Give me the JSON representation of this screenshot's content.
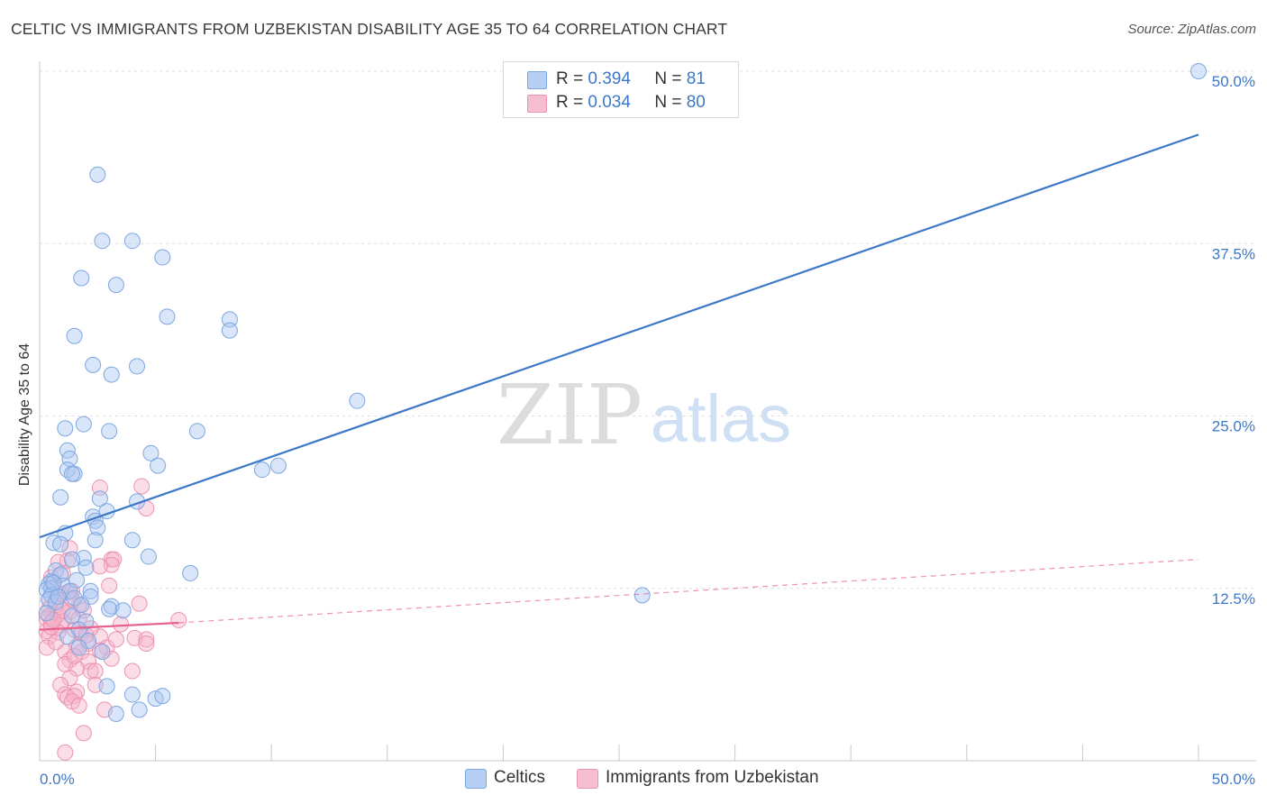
{
  "title": "CELTIC VS IMMIGRANTS FROM UZBEKISTAN DISABILITY AGE 35 TO 64 CORRELATION CHART",
  "source": "Source: ZipAtlas.com",
  "watermark": {
    "zip": "ZIP",
    "atlas": "atlas"
  },
  "colors": {
    "blue": "#3d78c8",
    "pink": "#e8638e",
    "blue_fill": "#b7cff2",
    "pink_fill": "#f6bfd0"
  },
  "legend": {
    "rows": [
      {
        "r_label": "R =",
        "r_value": "0.394",
        "n_label": "N =",
        "n_value": "81"
      },
      {
        "r_label": "R =",
        "r_value": "0.034",
        "n_label": "N =",
        "n_value": "80"
      }
    ]
  },
  "bottom_legend": {
    "series1": "Celtics",
    "series2": "Immigrants from Uzbekistan"
  },
  "chart_data": {
    "type": "scatter",
    "title": "CELTIC VS IMMIGRANTS FROM UZBEKISTAN DISABILITY AGE 35 TO 64 CORRELATION CHART",
    "xlabel": "",
    "ylabel": "Disability Age 35 to 64",
    "xlim": [
      0,
      50
    ],
    "ylim": [
      0,
      50
    ],
    "x_tick_labels": {
      "left": "0.0%",
      "right": "50.0%"
    },
    "y_ticks": [
      {
        "value": 12.5,
        "label": "12.5%"
      },
      {
        "value": 25,
        "label": "25.0%"
      },
      {
        "value": 37.5,
        "label": "37.5%"
      },
      {
        "value": 50,
        "label": "50.0%"
      }
    ],
    "series": [
      {
        "name": "Celtics",
        "r": 0.394,
        "n": 81,
        "trend": {
          "x": [
            0,
            50
          ],
          "y": [
            16.2,
            45.4
          ],
          "style": "solid"
        },
        "points": [
          [
            2.5,
            42.5
          ],
          [
            2.7,
            37.7
          ],
          [
            4.0,
            37.7
          ],
          [
            1.8,
            35.0
          ],
          [
            3.3,
            34.5
          ],
          [
            5.3,
            36.5
          ],
          [
            5.5,
            32.2
          ],
          [
            8.2,
            32.0
          ],
          [
            8.2,
            31.2
          ],
          [
            1.5,
            30.8
          ],
          [
            2.3,
            28.7
          ],
          [
            4.2,
            28.6
          ],
          [
            3.1,
            28.0
          ],
          [
            13.7,
            26.1
          ],
          [
            1.9,
            24.4
          ],
          [
            1.1,
            24.1
          ],
          [
            3.0,
            23.9
          ],
          [
            6.8,
            23.9
          ],
          [
            1.2,
            22.5
          ],
          [
            1.3,
            21.9
          ],
          [
            4.8,
            22.3
          ],
          [
            5.1,
            21.4
          ],
          [
            9.6,
            21.1
          ],
          [
            10.3,
            21.4
          ],
          [
            1.2,
            21.1
          ],
          [
            1.5,
            20.8
          ],
          [
            1.4,
            20.8
          ],
          [
            0.9,
            19.1
          ],
          [
            2.6,
            19.0
          ],
          [
            4.2,
            18.8
          ],
          [
            2.9,
            18.1
          ],
          [
            2.3,
            17.7
          ],
          [
            2.4,
            17.4
          ],
          [
            2.5,
            16.9
          ],
          [
            1.1,
            16.5
          ],
          [
            4.0,
            16.0
          ],
          [
            2.4,
            16.0
          ],
          [
            0.6,
            15.8
          ],
          [
            0.9,
            15.7
          ],
          [
            4.7,
            14.8
          ],
          [
            1.9,
            14.7
          ],
          [
            1.4,
            14.6
          ],
          [
            2.0,
            14.0
          ],
          [
            6.5,
            13.6
          ],
          [
            0.7,
            13.8
          ],
          [
            0.9,
            13.5
          ],
          [
            1.6,
            13.1
          ],
          [
            0.5,
            13.0
          ],
          [
            0.4,
            12.8
          ],
          [
            1.0,
            12.7
          ],
          [
            0.5,
            12.5
          ],
          [
            0.3,
            12.4
          ],
          [
            2.2,
            12.3
          ],
          [
            1.3,
            12.3
          ],
          [
            0.5,
            12.0
          ],
          [
            2.2,
            11.9
          ],
          [
            1.5,
            11.8
          ],
          [
            0.4,
            11.7
          ],
          [
            0.7,
            11.5
          ],
          [
            3.1,
            11.2
          ],
          [
            3.0,
            11.0
          ],
          [
            3.6,
            10.9
          ],
          [
            0.3,
            10.7
          ],
          [
            1.4,
            10.5
          ],
          [
            2.0,
            10.1
          ],
          [
            1.7,
            9.5
          ],
          [
            26.0,
            12.0
          ],
          [
            50.0,
            50.0
          ],
          [
            1.2,
            9.0
          ],
          [
            2.1,
            8.7
          ],
          [
            1.7,
            8.2
          ],
          [
            2.7,
            7.9
          ],
          [
            2.9,
            5.4
          ],
          [
            4.0,
            4.8
          ],
          [
            5.0,
            4.5
          ],
          [
            5.3,
            4.7
          ],
          [
            4.3,
            3.7
          ],
          [
            3.3,
            3.4
          ],
          [
            0.8,
            11.9
          ],
          [
            1.8,
            11.3
          ],
          [
            0.6,
            12.9
          ]
        ]
      },
      {
        "name": "Immigrants from Uzbekistan",
        "r": 0.034,
        "n": 80,
        "trend": {
          "x": [
            0,
            6.0,
            50
          ],
          "y": [
            9.5,
            10.0,
            14.6
          ],
          "style": "solid-then-dashed"
        },
        "points": [
          [
            2.6,
            19.8
          ],
          [
            4.4,
            19.9
          ],
          [
            4.6,
            18.3
          ],
          [
            1.3,
            15.4
          ],
          [
            3.1,
            14.6
          ],
          [
            3.2,
            14.6
          ],
          [
            3.1,
            14.2
          ],
          [
            1.2,
            14.5
          ],
          [
            2.6,
            14.1
          ],
          [
            0.8,
            14.4
          ],
          [
            0.5,
            13.3
          ],
          [
            1.0,
            13.6
          ],
          [
            3.0,
            12.7
          ],
          [
            1.2,
            12.2
          ],
          [
            1.4,
            12.3
          ],
          [
            0.8,
            11.9
          ],
          [
            0.4,
            11.7
          ],
          [
            4.3,
            11.4
          ],
          [
            1.7,
            11.3
          ],
          [
            0.9,
            11.1
          ],
          [
            0.4,
            11.0
          ],
          [
            1.3,
            10.8
          ],
          [
            0.8,
            10.6
          ],
          [
            0.4,
            10.5
          ],
          [
            1.7,
            10.3
          ],
          [
            0.3,
            10.3
          ],
          [
            6.0,
            10.2
          ],
          [
            1.0,
            10.1
          ],
          [
            0.5,
            10.0
          ],
          [
            0.9,
            9.8
          ],
          [
            1.5,
            9.5
          ],
          [
            0.3,
            9.4
          ],
          [
            0.8,
            9.3
          ],
          [
            1.8,
            9.2
          ],
          [
            0.4,
            9.0
          ],
          [
            2.6,
            9.0
          ],
          [
            4.1,
            8.9
          ],
          [
            4.6,
            8.8
          ],
          [
            4.6,
            8.5
          ],
          [
            2.1,
            8.5
          ],
          [
            1.6,
            8.3
          ],
          [
            2.9,
            8.2
          ],
          [
            0.3,
            8.2
          ],
          [
            2.6,
            8.0
          ],
          [
            1.8,
            7.9
          ],
          [
            1.1,
            7.9
          ],
          [
            3.1,
            7.4
          ],
          [
            1.3,
            7.3
          ],
          [
            2.1,
            7.2
          ],
          [
            1.1,
            7.0
          ],
          [
            1.6,
            6.7
          ],
          [
            2.2,
            6.5
          ],
          [
            2.4,
            6.5
          ],
          [
            4.0,
            6.5
          ],
          [
            1.3,
            6.0
          ],
          [
            2.4,
            5.5
          ],
          [
            0.9,
            5.5
          ],
          [
            1.6,
            5.0
          ],
          [
            1.1,
            4.8
          ],
          [
            1.2,
            4.6
          ],
          [
            1.5,
            4.7
          ],
          [
            1.4,
            4.3
          ],
          [
            1.7,
            4.0
          ],
          [
            2.8,
            3.7
          ],
          [
            1.9,
            2.0
          ],
          [
            1.1,
            0.6
          ],
          [
            0.6,
            12.6
          ],
          [
            0.7,
            11.3
          ],
          [
            1.0,
            10.9
          ],
          [
            0.5,
            9.7
          ],
          [
            0.7,
            8.6
          ],
          [
            1.9,
            10.9
          ],
          [
            2.2,
            9.6
          ],
          [
            3.3,
            8.8
          ],
          [
            0.9,
            12.1
          ],
          [
            1.4,
            11.7
          ],
          [
            0.6,
            10.2
          ],
          [
            2.0,
            9.1
          ],
          [
            3.5,
            9.9
          ],
          [
            1.5,
            7.6
          ]
        ]
      }
    ]
  }
}
